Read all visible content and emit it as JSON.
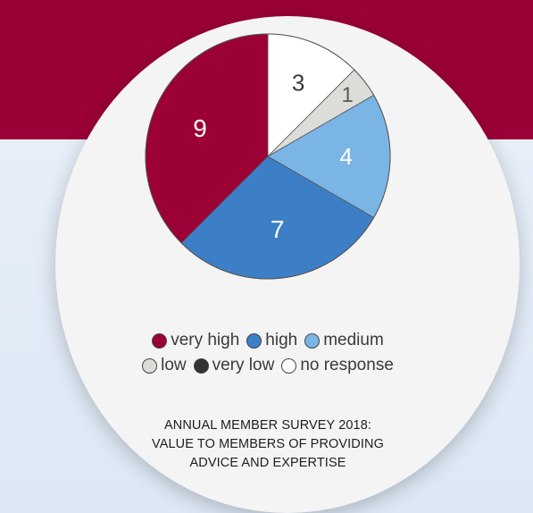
{
  "colors": {
    "band_top": "#9b0036",
    "band_bottom": "#e3ecf7",
    "disc": "#f4f4f4"
  },
  "chart_data": {
    "type": "pie",
    "title": "ANNUAL MEMBER SURVEY 2018: VALUE TO MEMBERS OF PROVIDING ADVICE AND EXPERTISE",
    "title_lines": [
      "ANNUAL MEMBER SURVEY 2018:",
      "VALUE TO MEMBERS OF PROVIDING",
      "ADVICE AND EXPERTISE"
    ],
    "slices": [
      {
        "label": "no response",
        "value": 3,
        "color": "#ffffff",
        "text_color": "#3a3a3a"
      },
      {
        "label": "low",
        "value": 1,
        "color": "#dcdcd8",
        "text_color": "#5a5a5a"
      },
      {
        "label": "medium",
        "value": 4,
        "color": "#7ab5e6",
        "text_color": "#ffffff"
      },
      {
        "label": "high",
        "value": 7,
        "color": "#3d7fc7",
        "text_color": "#ffffff"
      },
      {
        "label": "very high",
        "value": 9,
        "color": "#9b0036",
        "text_color": "#ffffff"
      }
    ],
    "legend": [
      [
        {
          "label": "very high",
          "color": "#9b0036"
        },
        {
          "label": "high",
          "color": "#3d7fc7"
        },
        {
          "label": "medium",
          "color": "#7ab5e6"
        }
      ],
      [
        {
          "label": "low",
          "color": "#dcdcd8"
        },
        {
          "label": "very low",
          "color": "#333333"
        },
        {
          "label": "no response",
          "color": "#ffffff"
        }
      ]
    ],
    "legend_placement": "bottom"
  }
}
